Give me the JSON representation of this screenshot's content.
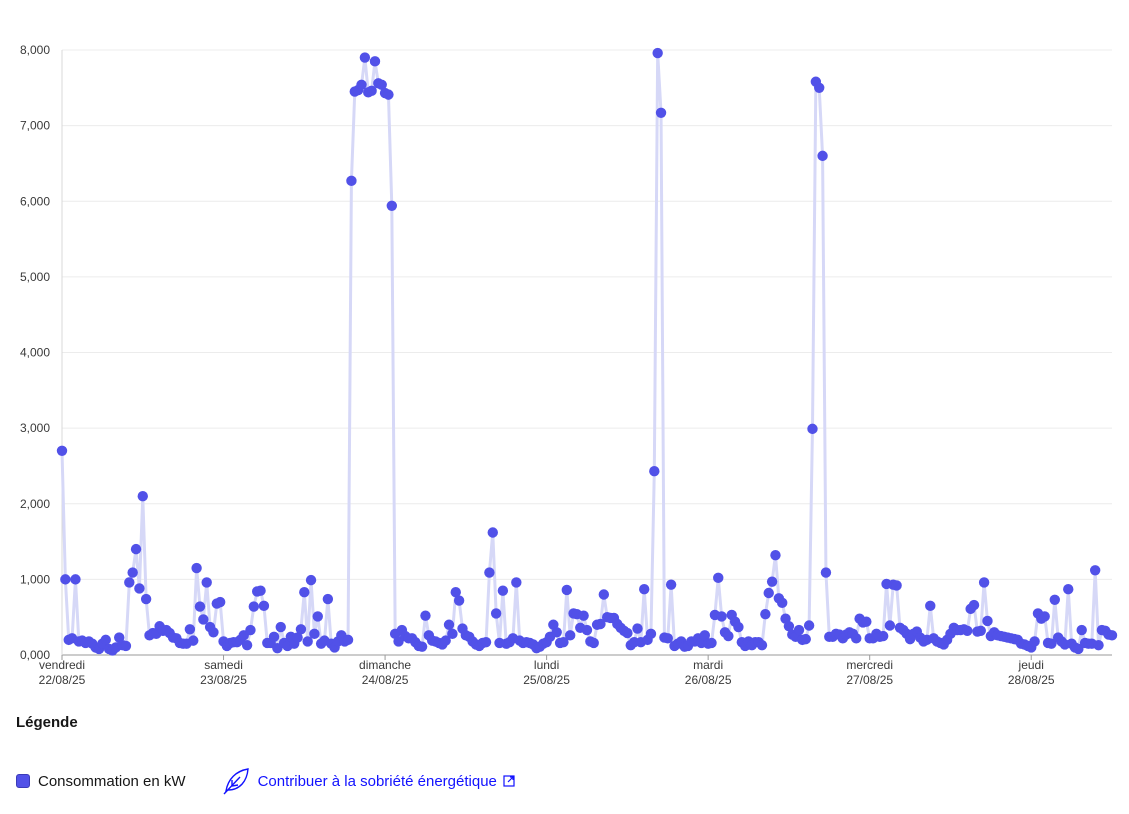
{
  "chart_data": {
    "type": "line",
    "ylim": [
      0,
      8000
    ],
    "yticks": [
      "0,000",
      "1,000",
      "2,000",
      "3,000",
      "4,000",
      "5,000",
      "6,000",
      "7,000",
      "8,000"
    ],
    "xticks": [
      {
        "day": "vendredi",
        "date": "22/08/25",
        "index": 0
      },
      {
        "day": "samedi",
        "date": "23/08/25",
        "index": 48
      },
      {
        "day": "dimanche",
        "date": "24/08/25",
        "index": 96
      },
      {
        "day": "lundi",
        "date": "25/08/25",
        "index": 144
      },
      {
        "day": "mardi",
        "date": "26/08/25",
        "index": 192
      },
      {
        "day": "mercredi",
        "date": "27/08/25",
        "index": 240
      },
      {
        "day": "jeudi",
        "date": "28/08/25",
        "index": 288
      }
    ],
    "x_interval": "30 min",
    "series": [
      {
        "name": "Consommation en kW",
        "color": "#5151e8",
        "values": [
          2700,
          1000,
          200,
          220,
          1000,
          180,
          190,
          160,
          180,
          150,
          100,
          80,
          150,
          200,
          80,
          60,
          100,
          230,
          130,
          120,
          960,
          1090,
          1400,
          880,
          2100,
          740,
          260,
          290,
          280,
          380,
          320,
          330,
          290,
          230,
          220,
          160,
          150,
          150,
          340,
          190,
          1150,
          640,
          470,
          960,
          370,
          300,
          680,
          700,
          180,
          120,
          160,
          170,
          170,
          200,
          260,
          130,
          330,
          640,
          840,
          850,
          650,
          160,
          160,
          240,
          90,
          370,
          160,
          120,
          240,
          150,
          230,
          340,
          830,
          180,
          990,
          280,
          510,
          150,
          190,
          740,
          150,
          100,
          180,
          260,
          180,
          200,
          6270,
          7450,
          7470,
          7540,
          7900,
          7440,
          7460,
          7850,
          7560,
          7540,
          7430,
          7410,
          5940,
          280,
          180,
          330,
          250,
          220,
          220,
          170,
          120,
          110,
          520,
          260,
          190,
          180,
          160,
          140,
          190,
          400,
          280,
          830,
          720,
          350,
          260,
          240,
          180,
          140,
          120,
          160,
          170,
          1090,
          1620,
          550,
          160,
          850,
          150,
          170,
          220,
          960,
          190,
          160,
          170,
          160,
          140,
          90,
          110,
          150,
          170,
          240,
          400,
          300,
          160,
          170,
          860,
          260,
          550,
          540,
          360,
          520,
          330,
          180,
          160,
          400,
          410,
          800,
          500,
          490,
          490,
          410,
          360,
          320,
          290,
          130,
          170,
          350,
          170,
          870,
          200,
          280,
          2430,
          7960,
          7170,
          230,
          220,
          930,
          120,
          150,
          180,
          110,
          120,
          180,
          180,
          220,
          160,
          260,
          150,
          160,
          530,
          1020,
          510,
          300,
          250,
          530,
          440,
          370,
          170,
          120,
          180,
          130,
          170,
          170,
          130,
          540,
          820,
          970,
          1320,
          750,
          690,
          480,
          380,
          270,
          240,
          330,
          200,
          210,
          390,
          2990,
          7580,
          7500,
          6600,
          1090,
          240,
          240,
          280,
          270,
          220,
          270,
          300,
          280,
          220,
          480,
          430,
          440,
          220,
          220,
          280,
          240,
          250,
          940,
          390,
          930,
          920,
          360,
          330,
          280,
          210,
          280,
          310,
          230,
          180,
          200,
          650,
          220,
          180,
          160,
          140,
          200,
          280,
          360,
          330,
          330,
          340,
          320,
          610,
          660,
          310,
          320,
          960,
          450,
          250,
          300,
          260,
          250,
          240,
          230,
          220,
          210,
          200,
          150,
          140,
          120,
          100,
          180,
          550,
          480,
          510,
          160,
          150,
          730,
          230,
          180,
          140,
          870,
          150,
          100,
          80,
          330,
          160,
          150,
          150,
          1120,
          130,
          330,
          320,
          270,
          260
        ]
      }
    ]
  },
  "legend": {
    "title": "Légende",
    "series_label": "Consommation en kW",
    "link_label": "Contribuer à la sobriété énergétique"
  }
}
